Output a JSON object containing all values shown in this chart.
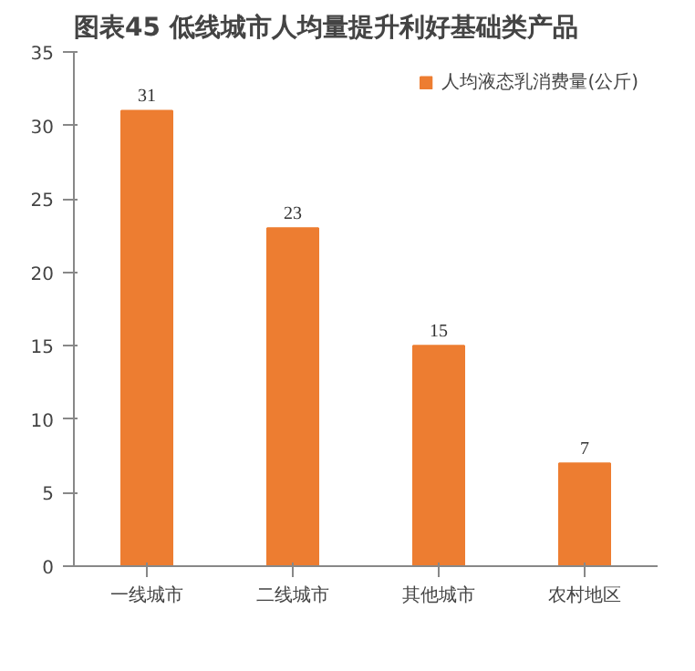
{
  "chart_data": {
    "type": "bar",
    "title": "图表45    低线城市人均量提升利好基础类产品",
    "categories": [
      "一线城市",
      "二线城市",
      "其他城市",
      "农村地区"
    ],
    "series": [
      {
        "name": "人均液态乳消费量(公斤)",
        "color": "#ed7d31",
        "values": [
          31,
          23,
          15,
          7
        ]
      }
    ],
    "ylim": [
      0,
      35
    ],
    "yticks": [
      0,
      5,
      10,
      15,
      20,
      25,
      30,
      35
    ],
    "data_labels": true,
    "legend": "top right",
    "grid": false
  }
}
